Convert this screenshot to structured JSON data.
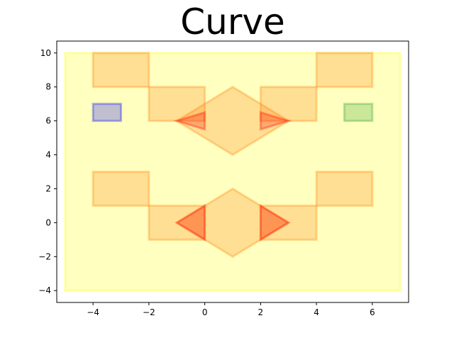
{
  "chart_data": {
    "type": "shapes",
    "title": "Curve",
    "xlabel": "",
    "ylabel": "",
    "xlim": [
      -5.3,
      7.3
    ],
    "ylim": [
      -4.7,
      10.7
    ],
    "xticks": [
      -4,
      -2,
      0,
      2,
      4,
      6
    ],
    "yticks": [
      -4,
      -2,
      0,
      2,
      4,
      6,
      8,
      10
    ],
    "grid": false,
    "legend": "none",
    "colors": {
      "yellow": "#ffff00",
      "orange": "#ff7f0e",
      "red": "#ff0000",
      "blue": "#0000ff",
      "green": "#2ca02c"
    },
    "shapes": [
      {
        "kind": "polygon",
        "color": "yellow",
        "points": [
          [
            -5,
            -4
          ],
          [
            7,
            -4
          ],
          [
            7,
            10
          ],
          [
            -5,
            10
          ]
        ]
      },
      {
        "kind": "rect",
        "color": "orange",
        "x": -4,
        "y": 8,
        "w": 2,
        "h": 2
      },
      {
        "kind": "rect",
        "color": "orange",
        "x": -2,
        "y": 6,
        "w": 2,
        "h": 2
      },
      {
        "kind": "rect",
        "color": "orange",
        "x": 2,
        "y": 6,
        "w": 2,
        "h": 2
      },
      {
        "kind": "rect",
        "color": "orange",
        "x": 4,
        "y": 8,
        "w": 2,
        "h": 2
      },
      {
        "kind": "polygon",
        "color": "orange",
        "points": [
          [
            -1,
            6
          ],
          [
            1,
            8
          ],
          [
            3,
            6
          ],
          [
            1,
            4
          ]
        ]
      },
      {
        "kind": "rect",
        "color": "orange",
        "x": -4,
        "y": 1,
        "w": 2,
        "h": 2
      },
      {
        "kind": "rect",
        "color": "orange",
        "x": -2,
        "y": -1,
        "w": 2,
        "h": 2
      },
      {
        "kind": "rect",
        "color": "orange",
        "x": 2,
        "y": -1,
        "w": 2,
        "h": 2
      },
      {
        "kind": "rect",
        "color": "orange",
        "x": 4,
        "y": 1,
        "w": 2,
        "h": 2
      },
      {
        "kind": "polygon",
        "color": "orange",
        "points": [
          [
            -1,
            0
          ],
          [
            1,
            2
          ],
          [
            3,
            0
          ],
          [
            1,
            -2
          ]
        ]
      },
      {
        "kind": "polygon",
        "color": "red",
        "points": [
          [
            -1,
            6
          ],
          [
            0,
            6.5
          ],
          [
            0,
            5.5
          ]
        ]
      },
      {
        "kind": "polygon",
        "color": "red",
        "points": [
          [
            2,
            6.5
          ],
          [
            3,
            6
          ],
          [
            2,
            5.5
          ]
        ]
      },
      {
        "kind": "polygon",
        "color": "red",
        "points": [
          [
            -1,
            0
          ],
          [
            0,
            1
          ],
          [
            0,
            -1
          ]
        ]
      },
      {
        "kind": "polygon",
        "color": "red",
        "points": [
          [
            2,
            1
          ],
          [
            3,
            0
          ],
          [
            2,
            -1
          ]
        ]
      },
      {
        "kind": "rect",
        "color": "blue",
        "x": -4,
        "y": 6,
        "w": 1,
        "h": 1
      },
      {
        "kind": "rect",
        "color": "green",
        "x": 5,
        "y": 6,
        "w": 1,
        "h": 1
      }
    ]
  }
}
